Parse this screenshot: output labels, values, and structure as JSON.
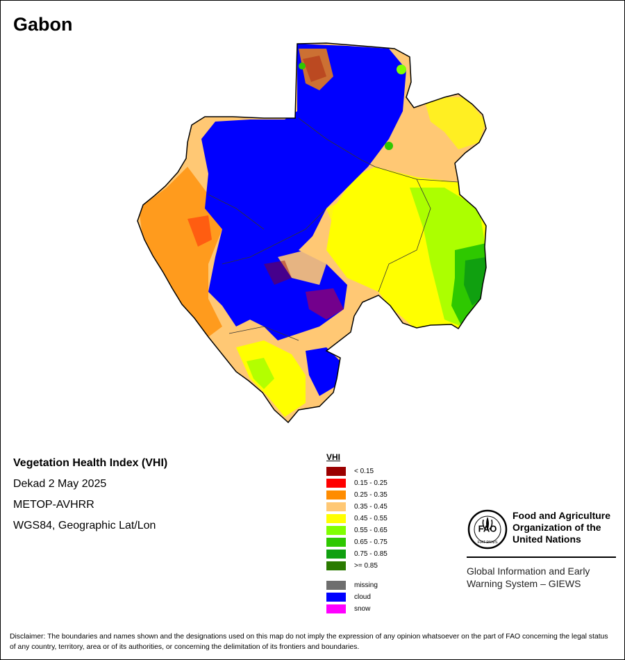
{
  "map": {
    "title": "Gabon"
  },
  "info": {
    "heading": "Vegetation Health Index (VHI)",
    "period": "Dekad 2 May 2025",
    "sensor": "METOP-AVHRR",
    "projection": "WGS84, Geographic Lat/Lon"
  },
  "legend": {
    "title": "VHI",
    "classes": [
      {
        "label": "< 0.15",
        "color": "#9b0000"
      },
      {
        "label": "0.15 - 0.25",
        "color": "#ff0000"
      },
      {
        "label": "0.25 - 0.35",
        "color": "#ff8c00"
      },
      {
        "label": "0.35 - 0.45",
        "color": "#ffc874"
      },
      {
        "label": "0.45 - 0.55",
        "color": "#ffff00"
      },
      {
        "label": "0.55 - 0.65",
        "color": "#80ff00"
      },
      {
        "label": "0.65 - 0.75",
        "color": "#2ec800"
      },
      {
        "label": "0.75 - 0.85",
        "color": "#10a010"
      },
      {
        "label": ">= 0.85",
        "color": "#2a7a00"
      }
    ],
    "other": [
      {
        "label": "missing",
        "color": "#6e6e6e"
      },
      {
        "label": "cloud",
        "color": "#0000ff"
      },
      {
        "label": "snow",
        "color": "#ff00ff"
      }
    ]
  },
  "fao": {
    "logo_text": "FAO",
    "logo_motto": "FIAT PANIS",
    "org_name": "Food and Agriculture Organization of the United Nations",
    "system_name": "Global Information and Early Warning System – GIEWS"
  },
  "disclaimer": "Disclaimer: The boundaries and names shown and the designations used on this map do not imply the expression of any opinion whatsoever on the part of FAO concerning the legal status of any country, territory, area or of its authorities, or concerning the delimitation of its frontiers and boundaries."
}
